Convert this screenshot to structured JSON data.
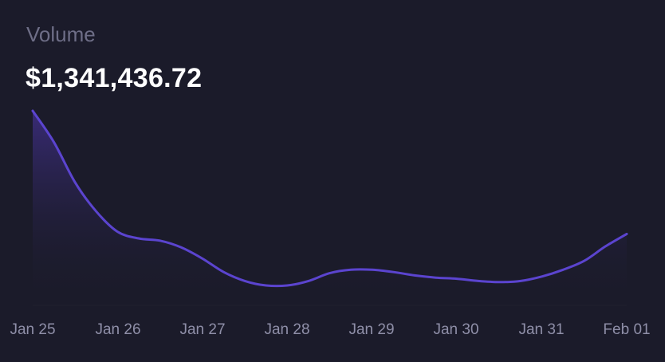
{
  "header": {
    "label": "Volume",
    "value": "$1,341,436.72"
  },
  "colors": {
    "background": "#1b1b2a",
    "line": "#5b44cf",
    "area_top": "#3a2c7a",
    "tick": "#8f8fa8"
  },
  "chart_data": {
    "type": "area",
    "title": "",
    "xlabel": "",
    "ylabel": "",
    "grid": false,
    "x": [
      "Jan 25",
      "Jan 26",
      "Jan 27",
      "Jan 28",
      "Jan 29",
      "Jan 30",
      "Jan 31",
      "Feb 01"
    ],
    "series": [
      {
        "values": [
          [
            0.0,
            100
          ],
          [
            0.25,
            86
          ],
          [
            0.5,
            68
          ],
          [
            0.75,
            55
          ],
          [
            1.0,
            46
          ],
          [
            1.25,
            43
          ],
          [
            1.5,
            42
          ],
          [
            1.75,
            39
          ],
          [
            2.0,
            34
          ],
          [
            2.25,
            28
          ],
          [
            2.5,
            24
          ],
          [
            2.75,
            22
          ],
          [
            3.0,
            22
          ],
          [
            3.25,
            24
          ],
          [
            3.5,
            27.5
          ],
          [
            3.75,
            29
          ],
          [
            4.0,
            29
          ],
          [
            4.25,
            28
          ],
          [
            4.5,
            26.5
          ],
          [
            4.75,
            25.5
          ],
          [
            5.0,
            25
          ],
          [
            5.25,
            24
          ],
          [
            5.5,
            23.5
          ],
          [
            5.75,
            24
          ],
          [
            6.0,
            26
          ],
          [
            6.25,
            29
          ],
          [
            6.5,
            33
          ],
          [
            6.75,
            39.5
          ],
          [
            7.0,
            45
          ]
        ]
      }
    ]
  }
}
